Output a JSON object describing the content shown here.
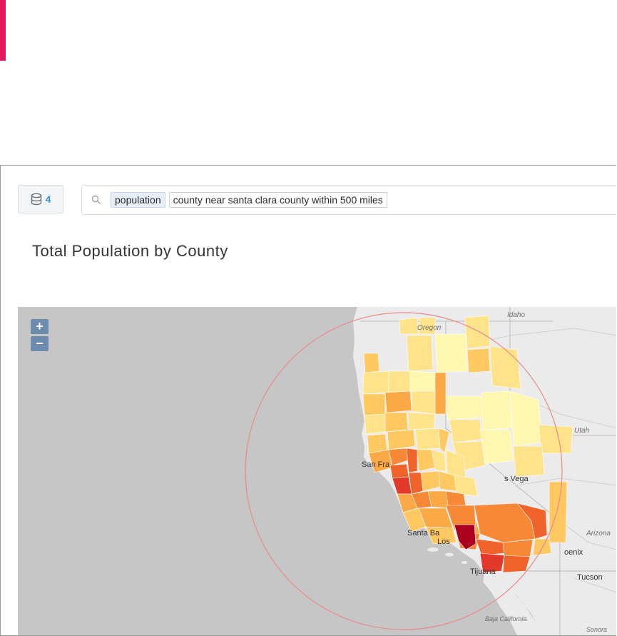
{
  "header": {
    "accent_color": "#e8175d"
  },
  "toolbar": {
    "source_count": "4",
    "search_tokens": [
      "population",
      "county near santa clara county within 500 miles"
    ]
  },
  "chart": {
    "title": "Total Population by County",
    "zoom_in": "+",
    "zoom_out": "−"
  },
  "map_labels": {
    "idaho": "Idaho",
    "oregon": "Oregon",
    "utah": "Utah",
    "san_francisco": "San Fra",
    "las_vegas": "s Vega",
    "santa_barbara": "Santa Ba",
    "los_angeles": "Los",
    "arizona": "Arizona",
    "phoenix": "oenix",
    "tucson": "Tucson",
    "tijuana": "Tijuana",
    "baja_california": "Baja California",
    "sonora": "Sonora"
  },
  "legend_colors": [
    "#fff7b0",
    "#ffe38a",
    "#ffc860",
    "#fba846",
    "#f78835",
    "#f0632a",
    "#e2392a",
    "#ab0020"
  ]
}
